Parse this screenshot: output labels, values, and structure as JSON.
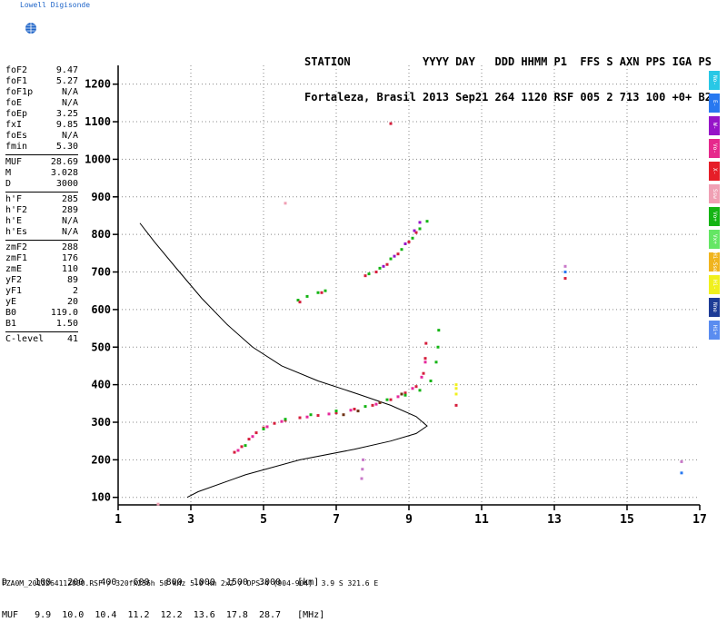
{
  "org": "Lowell Digisonde",
  "header": {
    "line1": "STATION           YYYY DAY   DDD HHMM P1  FFS S AXN PPS IGA PS",
    "line2": "Fortaleza, Brasil 2013 Sep21 264 1120 RSF 005 2 713 100 +0+ B2"
  },
  "params": [
    {
      "label": "foF2",
      "value": "9.47"
    },
    {
      "label": "foF1",
      "value": "5.27"
    },
    {
      "label": "foF1p",
      "value": "N/A"
    },
    {
      "label": "foE",
      "value": "N/A"
    },
    {
      "label": "foEp",
      "value": "3.25"
    },
    {
      "label": "fxI",
      "value": "9.85"
    },
    {
      "label": "foEs",
      "value": "N/A"
    },
    {
      "label": "fmin",
      "value": "5.30"
    },
    {
      "sep": true
    },
    {
      "label": "MUF",
      "value": "28.69"
    },
    {
      "label": "M",
      "value": "3.028"
    },
    {
      "label": "D",
      "value": "3000"
    },
    {
      "sep": true
    },
    {
      "label": "h'F",
      "value": "285"
    },
    {
      "label": "h'F2",
      "value": "289"
    },
    {
      "label": "h'E",
      "value": "N/A"
    },
    {
      "label": "h'Es",
      "value": "N/A"
    },
    {
      "sep": true
    },
    {
      "label": "zmF2",
      "value": "288"
    },
    {
      "label": "zmF1",
      "value": "176"
    },
    {
      "label": "zmE",
      "value": "110"
    },
    {
      "label": "yF2",
      "value": "89"
    },
    {
      "label": "yF1",
      "value": "2"
    },
    {
      "label": "yE",
      "value": "20"
    },
    {
      "label": "B0",
      "value": "119.0"
    },
    {
      "label": "B1",
      "value": "1.50"
    },
    {
      "sep": true
    },
    {
      "label": "C-level",
      "value": "41"
    }
  ],
  "legend": [
    {
      "label": "No-",
      "color": "#28c8e6"
    },
    {
      "label": "E-",
      "color": "#2878f0"
    },
    {
      "label": "W-",
      "color": "#9614c8"
    },
    {
      "label": "Vo-",
      "color": "#e6288c"
    },
    {
      "label": "X-",
      "color": "#e61e28"
    },
    {
      "label": "Ssw",
      "color": "#f0a0b4"
    },
    {
      "label": "Vo+",
      "color": "#14b414"
    },
    {
      "label": "Vx+",
      "color": "#64e664"
    },
    {
      "label": "Hi-Sse",
      "color": "#f0b41e"
    },
    {
      "label": "Hi-",
      "color": "#f0f01e"
    },
    {
      "label": "Nne",
      "color": "#1e3c96"
    },
    {
      "label": "Hi+",
      "color": "#5a8cf0"
    }
  ],
  "dmuf": {
    "line1": "D     100   200   400   600   800  1000  1500  3000   [km]",
    "line2": "MUF   9.9  10.0  10.4  11.2  12.2  13.6  17.8  28.7   [MHz]"
  },
  "footer": "FZA0M_2013264112000.RSF / 320fx256h 50 kHz 5.0 km 2x2 / DPS-4 (904-904)  3.9 S 321.6 E",
  "chart_data": {
    "type": "scatter",
    "xlim": [
      1,
      17
    ],
    "ylim": [
      80,
      1250
    ],
    "xticks": [
      1,
      3,
      5,
      7,
      9,
      11,
      13,
      15,
      17
    ],
    "yticks": [
      100,
      200,
      300,
      400,
      500,
      600,
      700,
      800,
      900,
      1000,
      1100,
      1200
    ],
    "grid": true,
    "series": [
      {
        "color": "#d61e3c",
        "points": [
          [
            4.2,
            220
          ],
          [
            4.4,
            235
          ],
          [
            4.6,
            255
          ],
          [
            4.8,
            272
          ],
          [
            5.0,
            285
          ],
          [
            5.3,
            297
          ],
          [
            5.6,
            305
          ],
          [
            6.0,
            312
          ],
          [
            6.5,
            318
          ],
          [
            7.0,
            325
          ],
          [
            7.5,
            335
          ],
          [
            8.0,
            345
          ],
          [
            8.5,
            360
          ],
          [
            8.9,
            378
          ],
          [
            9.2,
            395
          ],
          [
            9.4,
            430
          ],
          [
            9.45,
            470
          ],
          [
            9.47,
            510
          ]
        ]
      },
      {
        "color": "#e6289c",
        "points": [
          [
            4.3,
            225
          ],
          [
            4.7,
            262
          ],
          [
            5.1,
            288
          ],
          [
            5.5,
            302
          ],
          [
            6.2,
            314
          ],
          [
            6.8,
            322
          ],
          [
            7.4,
            332
          ],
          [
            8.1,
            348
          ],
          [
            8.7,
            368
          ],
          [
            9.1,
            390
          ],
          [
            9.35,
            420
          ],
          [
            9.45,
            460
          ]
        ]
      },
      {
        "color": "#14b414",
        "points": [
          [
            4.5,
            238
          ],
          [
            5.0,
            282
          ],
          [
            5.6,
            308
          ],
          [
            6.3,
            320
          ],
          [
            7.0,
            330
          ],
          [
            7.8,
            342
          ],
          [
            8.4,
            360
          ],
          [
            8.9,
            372
          ],
          [
            9.3,
            385
          ],
          [
            9.6,
            410
          ],
          [
            9.75,
            460
          ],
          [
            9.8,
            500
          ],
          [
            9.82,
            545
          ]
        ]
      },
      {
        "color": "#6e3214",
        "points": [
          [
            7.2,
            320
          ],
          [
            7.6,
            330
          ],
          [
            8.2,
            352
          ],
          [
            8.8,
            375
          ]
        ]
      },
      {
        "color": "#14b414",
        "points": [
          [
            7.9,
            695
          ],
          [
            8.2,
            710
          ],
          [
            8.5,
            735
          ],
          [
            8.8,
            760
          ],
          [
            9.1,
            790
          ],
          [
            9.3,
            815
          ],
          [
            9.5,
            835
          ]
        ]
      },
      {
        "color": "#d61e3c",
        "points": [
          [
            7.8,
            690
          ],
          [
            8.1,
            700
          ],
          [
            8.4,
            720
          ],
          [
            8.7,
            748
          ],
          [
            9.0,
            780
          ],
          [
            9.2,
            805
          ]
        ]
      },
      {
        "color": "#9614c8",
        "points": [
          [
            8.3,
            715
          ],
          [
            8.6,
            742
          ],
          [
            8.9,
            775
          ],
          [
            9.15,
            810
          ],
          [
            9.3,
            832
          ]
        ]
      },
      {
        "color": "#14b414",
        "points": [
          [
            5.95,
            625
          ],
          [
            6.2,
            635
          ],
          [
            6.5,
            645
          ],
          [
            6.7,
            650
          ]
        ]
      },
      {
        "color": "#d61e3c",
        "points": [
          [
            6.0,
            620
          ],
          [
            6.6,
            645
          ],
          [
            8.5,
            1095
          ],
          [
            10.3,
            345
          ],
          [
            13.3,
            683
          ]
        ]
      },
      {
        "color": "#f0f01e",
        "points": [
          [
            10.3,
            375
          ],
          [
            10.3,
            390
          ],
          [
            10.3,
            400
          ]
        ]
      },
      {
        "color": "#c878c8",
        "points": [
          [
            7.7,
            150
          ],
          [
            7.72,
            175
          ],
          [
            7.74,
            200
          ],
          [
            13.3,
            715
          ],
          [
            16.5,
            195
          ]
        ]
      },
      {
        "color": "#2878f0",
        "points": [
          [
            16.5,
            165
          ],
          [
            13.3,
            700
          ]
        ]
      },
      {
        "color": "#f0a0b4",
        "points": [
          [
            5.6,
            883
          ],
          [
            2.1,
            82
          ]
        ]
      }
    ],
    "profile": [
      [
        2.9,
        100
      ],
      [
        3.2,
        115
      ],
      [
        4.5,
        160
      ],
      [
        6.0,
        200
      ],
      [
        7.5,
        228
      ],
      [
        8.5,
        250
      ],
      [
        9.2,
        270
      ],
      [
        9.5,
        290
      ],
      [
        9.2,
        315
      ],
      [
        8.5,
        345
      ],
      [
        7.6,
        375
      ],
      [
        6.5,
        410
      ],
      [
        5.5,
        450
      ],
      [
        4.7,
        500
      ],
      [
        4.0,
        560
      ],
      [
        3.3,
        630
      ],
      [
        2.6,
        710
      ],
      [
        2.0,
        780
      ],
      [
        1.6,
        830
      ]
    ]
  }
}
